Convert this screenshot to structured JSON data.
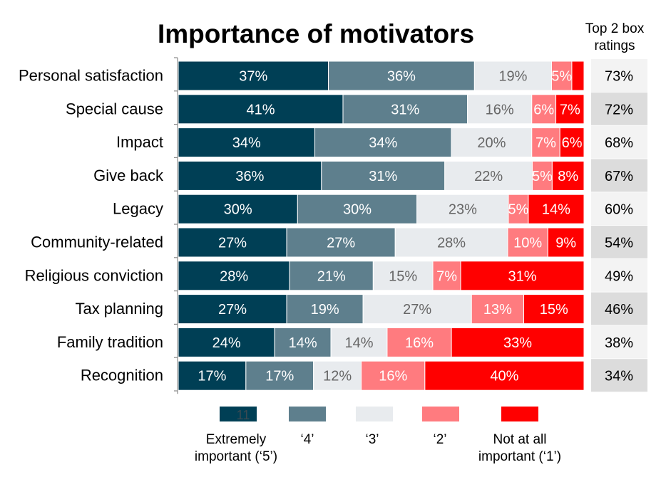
{
  "chart_data": {
    "type": "bar",
    "orientation": "horizontal",
    "stacked": true,
    "title": "Importance of motivators",
    "categories": [
      "Personal satisfaction",
      "Special cause",
      "Impact",
      "Give back",
      "Legacy",
      "Community-related",
      "Religious conviction",
      "Tax planning",
      "Family tradition",
      "Recognition"
    ],
    "series": [
      {
        "name": "Extremely important (‘5’)",
        "color": "#003f55",
        "text_color": "#ffffff",
        "values": [
          37,
          41,
          34,
          36,
          30,
          27,
          28,
          27,
          24,
          17
        ]
      },
      {
        "name": "‘4’",
        "color": "#5e7f8d",
        "text_color": "#ffffff",
        "values": [
          36,
          31,
          34,
          31,
          30,
          27,
          21,
          19,
          14,
          17
        ]
      },
      {
        "name": "‘3’",
        "color": "#e8ebee",
        "text_color": "#666666",
        "values": [
          19,
          16,
          20,
          22,
          23,
          28,
          15,
          27,
          14,
          12
        ]
      },
      {
        "name": "‘2’",
        "color": "#ff7b7f",
        "text_color": "#ffffff",
        "values": [
          5,
          6,
          7,
          5,
          5,
          10,
          7,
          13,
          16,
          16
        ]
      },
      {
        "name": "Not at all important (‘1’)",
        "color": "#ff0000",
        "text_color": "#ffffff",
        "values": [
          3,
          7,
          6,
          8,
          14,
          9,
          31,
          15,
          33,
          40
        ]
      }
    ],
    "labels": [
      [
        "37%",
        "36%",
        "19%",
        "5%",
        ""
      ],
      [
        "41%",
        "31%",
        "16%",
        "6%",
        "7%"
      ],
      [
        "34%",
        "34%",
        "20%",
        "7%",
        "6%"
      ],
      [
        "36%",
        "31%",
        "22%",
        "5%",
        "8%"
      ],
      [
        "30%",
        "30%",
        "23%",
        "5%",
        "14%"
      ],
      [
        "27%",
        "27%",
        "28%",
        "10%",
        "9%"
      ],
      [
        "28%",
        "21%",
        "15%",
        "7%",
        "31%"
      ],
      [
        "27%",
        "19%",
        "27%",
        "13%",
        "15%"
      ],
      [
        "24%",
        "14%",
        "14%",
        "16%",
        "33%"
      ],
      [
        "17%",
        "17%",
        "12%",
        "16%",
        "40%"
      ]
    ],
    "top2": {
      "header_lines": [
        "Top 2 box",
        "ratings"
      ],
      "values": [
        "73%",
        "72%",
        "68%",
        "67%",
        "60%",
        "54%",
        "49%",
        "46%",
        "38%",
        "34%"
      ],
      "colors": [
        "#f3f3f3",
        "#dcdcdc"
      ]
    },
    "legend": {
      "placement": "bottom",
      "swatch_text": "11",
      "labels": [
        [
          "Extremely",
          "important (‘5’)"
        ],
        [
          "‘4’"
        ],
        [
          "‘3’"
        ],
        [
          "‘2’"
        ],
        [
          "Not at all",
          "important (‘1’)"
        ]
      ]
    },
    "xlim": [
      0,
      100
    ]
  }
}
